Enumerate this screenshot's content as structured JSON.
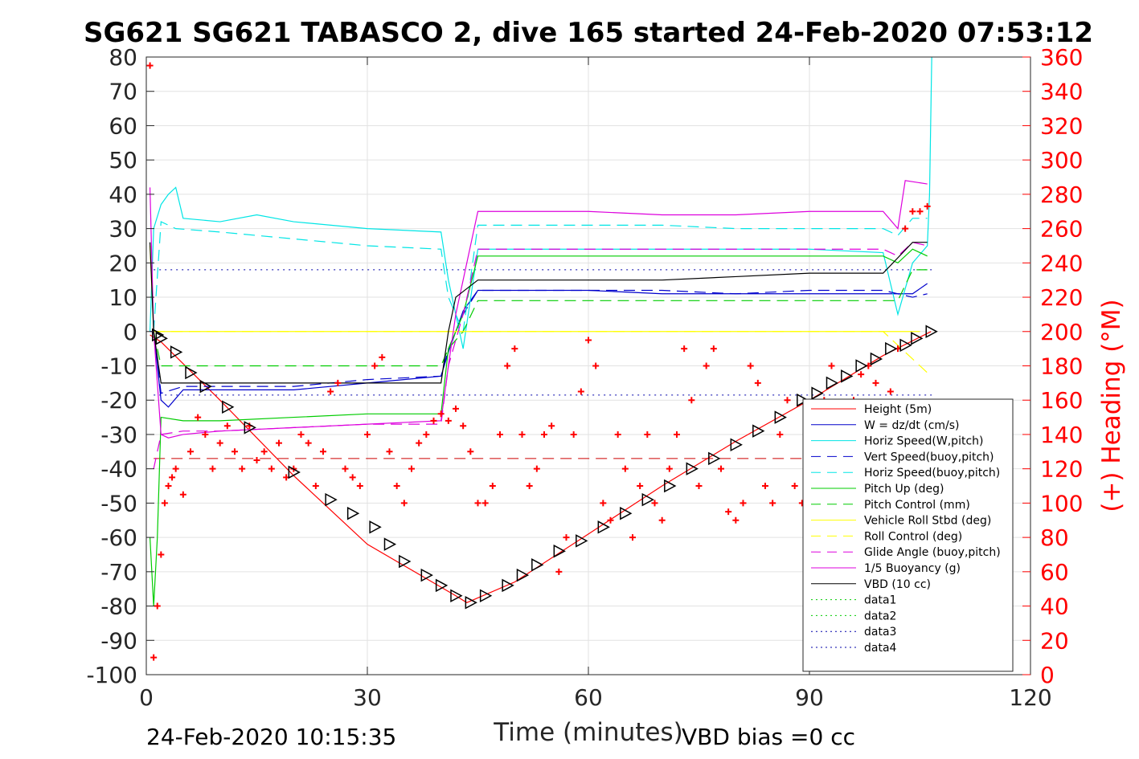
{
  "title": "SG621 SG621 TABASCO 2, dive 165 started 24-Feb-2020 07:53:12",
  "footer_left": "24-Feb-2020 10:15:35",
  "footer_right": "VBD bias =0 cc",
  "chart_data": {
    "type": "line",
    "title": "SG621 SG621 TABASCO 2, dive 165 started 24-Feb-2020 07:53:12",
    "xlabel": "Time (minutes)",
    "ylabel": "",
    "ylabel_right": "(+) Heading (°M)",
    "xlim": [
      0,
      120
    ],
    "ylim": [
      -100,
      80
    ],
    "ylim_right": [
      0,
      360
    ],
    "x_ticks": [
      0,
      30,
      60,
      90,
      120
    ],
    "y_ticks": [
      80,
      70,
      60,
      50,
      40,
      30,
      20,
      10,
      0,
      -10,
      -20,
      -30,
      -40,
      -50,
      -60,
      -70,
      -80,
      -90,
      -100
    ],
    "y_ticks_right": [
      360,
      340,
      320,
      300,
      280,
      260,
      240,
      220,
      200,
      180,
      160,
      140,
      120,
      100,
      80,
      60,
      40,
      20,
      0
    ],
    "grid": true,
    "legend_position": "bottom-right",
    "series": [
      {
        "name": "Height (5m)",
        "color": "#ff0000",
        "style": "solid",
        "x": [
          0.5,
          2,
          10,
          20,
          30,
          42,
          43.5,
          50,
          60,
          70,
          80,
          90,
          100,
          106.5
        ],
        "y": [
          -1,
          -3,
          -20,
          -42,
          -62,
          -77,
          -79,
          -73,
          -59,
          -45,
          -32,
          -20,
          -7,
          0
        ]
      },
      {
        "name": "W = dz/dt (cm/s)",
        "color": "#0000cc",
        "style": "solid",
        "x": [
          0.5,
          1,
          2,
          3,
          5,
          10,
          20,
          30,
          40,
          41,
          43,
          45,
          50,
          60,
          70,
          80,
          90,
          100,
          102,
          104,
          106
        ],
        "y": [
          0,
          0,
          -20,
          -22,
          -17,
          -17,
          -17,
          -15,
          -13,
          -6,
          6,
          12,
          12,
          12,
          11,
          11,
          11,
          11,
          11,
          11,
          14
        ]
      },
      {
        "name": "Horiz Speed(W,pitch)",
        "color": "#00e5e5",
        "style": "solid",
        "x": [
          0.5,
          1,
          2,
          3,
          4,
          5,
          10,
          15,
          20,
          30,
          40,
          41,
          43,
          45,
          50,
          60,
          70,
          80,
          90,
          100,
          102,
          104,
          106,
          106.3,
          106.6
        ],
        "y": [
          0,
          30,
          37,
          40,
          42,
          33,
          32,
          34,
          32,
          30,
          29,
          15,
          -5,
          24,
          24,
          24,
          24,
          24,
          24,
          23,
          5,
          20,
          25,
          40,
          80
        ]
      },
      {
        "name": "Vert Speed(buoy,pitch)",
        "color": "#0000cc",
        "style": "dash",
        "x": [
          1,
          2,
          5,
          10,
          20,
          30,
          40,
          41,
          43,
          45,
          50,
          60,
          70,
          80,
          90,
          100,
          104,
          106
        ],
        "y": [
          0,
          -18,
          -16,
          -16,
          -16,
          -14,
          -13,
          -5,
          5,
          12,
          12,
          12,
          12,
          11,
          12,
          12,
          10,
          11
        ]
      },
      {
        "name": "Horiz Speed(buoy,pitch)",
        "color": "#00e5e5",
        "style": "dash",
        "x": [
          1,
          2,
          4,
          10,
          20,
          30,
          40,
          41,
          43,
          45,
          50,
          60,
          70,
          80,
          90,
          100,
          102,
          104,
          106
        ],
        "y": [
          0,
          32,
          30,
          29,
          27,
          25,
          24,
          10,
          0,
          31,
          31,
          31,
          31,
          30,
          30,
          30,
          28,
          33,
          33
        ]
      },
      {
        "name": "Pitch Up (deg)",
        "color": "#00cc00",
        "style": "solid",
        "x": [
          0.5,
          1,
          1.5,
          2,
          5,
          10,
          20,
          30,
          40,
          41,
          43,
          45,
          50,
          60,
          70,
          80,
          90,
          100,
          102,
          104,
          106
        ],
        "y": [
          -60,
          -80,
          -60,
          -25,
          -26,
          -26,
          -25,
          -24,
          -24,
          -5,
          5,
          22,
          22,
          22,
          22,
          22,
          22,
          22,
          20,
          24,
          22
        ]
      },
      {
        "name": "Pitch Control (mm)",
        "color": "#00cc00",
        "style": "dash",
        "x": [
          1,
          2,
          5,
          20,
          40,
          41,
          43,
          45,
          60,
          80,
          100,
          102,
          104,
          106
        ],
        "y": [
          0,
          -10,
          -10,
          -10,
          -10,
          -5,
          0,
          9,
          9,
          9,
          9,
          9,
          18,
          18
        ]
      },
      {
        "name": "Vehicle Roll Stbd (deg)",
        "color": "#ffff00",
        "style": "solid",
        "x": [
          0.5,
          1,
          2,
          5,
          10,
          15,
          20,
          25,
          30,
          35,
          40,
          45,
          50,
          55,
          60,
          65,
          70,
          75,
          80,
          85,
          90,
          95,
          100,
          105
        ],
        "y": [
          25,
          0,
          0,
          0,
          0,
          0,
          0,
          0,
          0,
          0,
          0,
          0,
          0,
          0,
          0,
          0,
          0,
          0,
          0,
          0,
          0,
          0,
          0,
          0
        ]
      },
      {
        "name": "Roll Control (deg)",
        "color": "#ffff00",
        "style": "dash",
        "x": [
          1,
          2,
          5,
          10,
          20,
          30,
          40,
          45,
          50,
          60,
          70,
          80,
          90,
          100,
          106
        ],
        "y": [
          0,
          0,
          0,
          0,
          0,
          0,
          0,
          0,
          0,
          0,
          0,
          0,
          0,
          0,
          -12
        ]
      },
      {
        "name": "Glide Angle (buoy,pitch)",
        "color": "#dd00dd",
        "style": "dash",
        "x": [
          1,
          2,
          5,
          10,
          20,
          30,
          40,
          41,
          43,
          45,
          50,
          60,
          70,
          80,
          90,
          100,
          102,
          104,
          106
        ],
        "y": [
          -40,
          -30,
          -29,
          -29,
          -28,
          -27,
          -27,
          -10,
          5,
          24,
          24,
          24,
          24,
          24,
          24,
          24,
          22,
          26,
          25
        ]
      },
      {
        "name": "1/5 Buoyancy (g)",
        "color": "#dd00dd",
        "style": "solid",
        "x": [
          0.5,
          1,
          2,
          3,
          5,
          10,
          20,
          30,
          40,
          41,
          42,
          45,
          50,
          60,
          70,
          80,
          90,
          100,
          102,
          103,
          106
        ],
        "y": [
          42,
          0,
          -30,
          -31,
          -30,
          -29,
          -28,
          -27,
          -26,
          -10,
          5,
          35,
          35,
          35,
          34,
          34,
          35,
          35,
          30,
          44,
          43
        ]
      },
      {
        "name": "VBD (10 cc)",
        "color": "#000000",
        "style": "solid",
        "x": [
          0.5,
          1,
          2,
          10,
          20,
          30,
          40,
          41,
          42,
          45,
          50,
          60,
          70,
          80,
          90,
          100,
          104,
          106
        ],
        "y": [
          26,
          0,
          -15,
          -15,
          -15,
          -15,
          -15,
          0,
          10,
          15,
          15,
          15,
          15,
          16,
          17,
          17,
          26,
          26
        ]
      },
      {
        "name": "data1",
        "color": "#00cc00",
        "style": "dot",
        "x": [],
        "y": []
      },
      {
        "name": "data2",
        "color": "#00cc00",
        "style": "dot",
        "x": [],
        "y": []
      },
      {
        "name": "data3",
        "color": "#0000aa",
        "style": "dot",
        "x": [],
        "y": []
      },
      {
        "name": "data4",
        "color": "#0000aa",
        "style": "dot",
        "x": [],
        "y": []
      }
    ],
    "reference_lines": [
      {
        "axis": "y",
        "value": 18,
        "color": "#0000aa",
        "style": "dot",
        "x_range": [
          1,
          107
        ]
      },
      {
        "axis": "y",
        "value": -18.5,
        "color": "#0000aa",
        "style": "dot",
        "x_range": [
          1,
          107
        ]
      },
      {
        "axis": "y",
        "value": -37,
        "color": "#cc0000",
        "style": "dash",
        "x_range": [
          1,
          107
        ]
      }
    ],
    "markers_triangles": {
      "color": "#000000",
      "x": [
        1.5,
        2,
        4,
        6,
        8,
        11,
        14,
        20,
        25,
        28,
        31,
        33,
        35,
        38,
        40,
        42,
        44,
        46,
        49,
        51,
        53,
        56,
        59,
        62,
        65,
        68,
        71,
        74,
        77,
        80,
        83,
        86,
        89,
        91,
        93,
        95,
        97,
        99,
        101,
        103,
        104.5,
        106.5
      ],
      "y": [
        -1,
        -2,
        -6,
        -12,
        -16,
        -22,
        -28,
        -41,
        -49,
        -53,
        -57,
        -62,
        -67,
        -71,
        -74,
        -77,
        -79,
        -77,
        -74,
        -71,
        -68,
        -64,
        -61,
        -57,
        -53,
        -49,
        -45,
        -40,
        -37,
        -33,
        -29,
        -25,
        -20,
        -18,
        -15,
        -13,
        -10,
        -8,
        -5,
        -4,
        -2,
        0
      ]
    },
    "heading_series": {
      "name": "(+) Heading (°M)",
      "color": "#ff0000",
      "axis": "right",
      "x": [
        0.5,
        1,
        1.5,
        2,
        2.5,
        3,
        3.5,
        4,
        5,
        6,
        7,
        8,
        9,
        10,
        11,
        12,
        13,
        14,
        15,
        16,
        17,
        18,
        19,
        20,
        21,
        22,
        23,
        24,
        25,
        26,
        27,
        28,
        29,
        30,
        31,
        32,
        33,
        34,
        35,
        36,
        37,
        38,
        39,
        40,
        41,
        42,
        43,
        44,
        45,
        46,
        47,
        48,
        49,
        50,
        51,
        52,
        53,
        54,
        55,
        56,
        57,
        58,
        59,
        60,
        61,
        62,
        63,
        64,
        65,
        66,
        67,
        68,
        69,
        70,
        71,
        72,
        73,
        74,
        75,
        76,
        77,
        78,
        79,
        80,
        81,
        82,
        83,
        84,
        85,
        86,
        87,
        88,
        89,
        90,
        91,
        92,
        93,
        94,
        95,
        96,
        97,
        98,
        99,
        100,
        101,
        102,
        103,
        104,
        105,
        106
      ],
      "y": [
        355,
        10,
        40,
        70,
        100,
        110,
        115,
        120,
        105,
        130,
        150,
        140,
        120,
        135,
        145,
        130,
        120,
        145,
        125,
        130,
        120,
        135,
        115,
        120,
        140,
        135,
        110,
        130,
        165,
        170,
        120,
        115,
        110,
        140,
        180,
        185,
        130,
        110,
        100,
        120,
        135,
        140,
        148,
        152,
        148,
        155,
        145,
        130,
        100,
        100,
        110,
        140,
        180,
        190,
        140,
        110,
        120,
        140,
        145,
        60,
        80,
        140,
        165,
        195,
        180,
        100,
        90,
        140,
        120,
        80,
        110,
        140,
        100,
        90,
        120,
        140,
        190,
        160,
        110,
        180,
        190,
        120,
        95,
        90,
        100,
        180,
        170,
        110,
        100,
        140,
        160,
        110,
        100,
        140,
        150,
        160,
        180,
        150,
        140,
        160,
        175,
        180,
        170,
        155,
        165,
        190,
        260,
        270,
        270,
        273
      ]
    }
  }
}
